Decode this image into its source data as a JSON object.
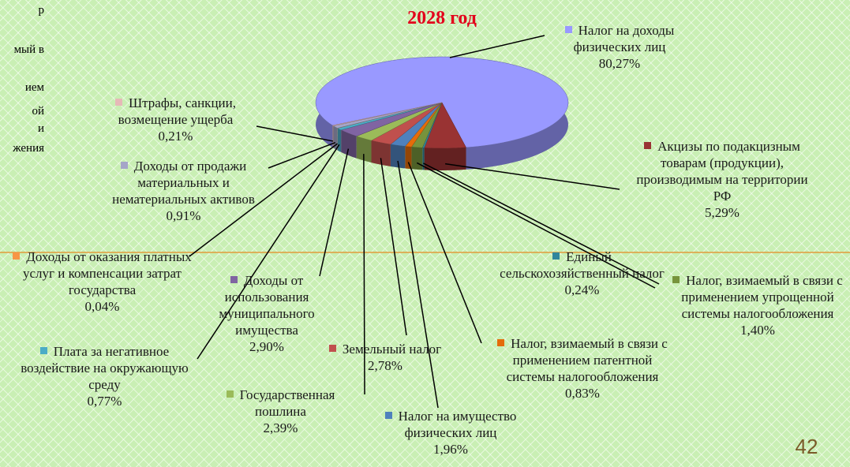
{
  "chart_data": {
    "type": "pie",
    "title": "2028 год",
    "categories": [
      "Налог на доходы физических лиц",
      "Акцизы по подакцизным товарам (продукции), производимым на территории РФ",
      "Единый сельскохозяйственный налог",
      "Налог, взимаемый в связи с применением упрощенной системы налогообложения",
      "Налог, взимаемый в связи с применением патентной системы налогообложения",
      "Налог на имущество физических лиц",
      "Земельный налог",
      "Государственная пошлина",
      "Доходы от использования муниципального имущества",
      "Плата за негативное воздействие на окружающую среду",
      "Доходы от оказания платных услуг и компенсации затрат государства",
      "Доходы от продажи материальных и нематериальных активов",
      "Штрафы, санкции, возмещение ущерба"
    ],
    "values": [
      80.27,
      5.29,
      0.24,
      1.4,
      0.83,
      1.96,
      2.78,
      2.39,
      2.9,
      0.77,
      0.04,
      0.91,
      0.21
    ],
    "value_labels": [
      "80,27%",
      "5,29%",
      "0,24%",
      "1,40%",
      "0,83%",
      "1,96%",
      "2,78%",
      "2,39%",
      "2,90%",
      "0,77%",
      "0,04%",
      "0,91%",
      "0,21%"
    ],
    "colors": [
      "#9999ff",
      "#993333",
      "#31859c",
      "#77933c",
      "#e46c0a",
      "#4f81bd",
      "#c0504d",
      "#9bbb59",
      "#8064a2",
      "#4bacc6",
      "#f79646",
      "#a5a5c8",
      "#e6b9b8"
    ]
  },
  "slide_number": "42",
  "left_fragments": [
    "р",
    "мый в",
    "ием",
    "ой",
    "и",
    "жения"
  ]
}
